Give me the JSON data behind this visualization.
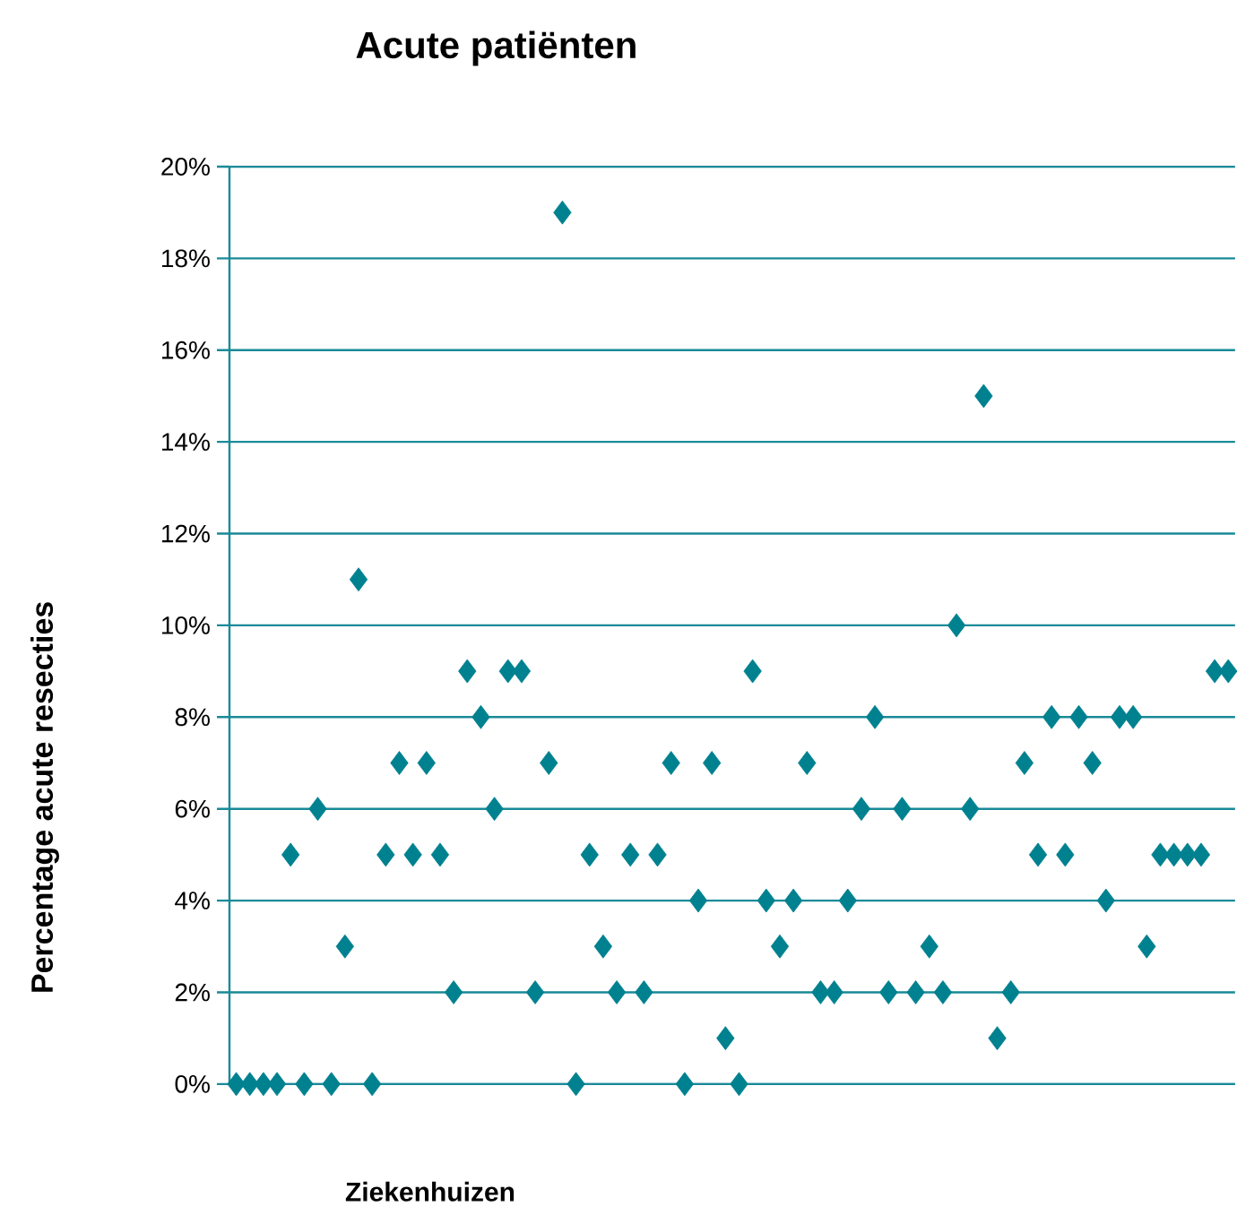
{
  "chart_data": {
    "type": "scatter",
    "title": "Acute patiënten",
    "xlabel": "Ziekenhuizen",
    "ylabel": "Percentage acute resecties",
    "categories": [
      null,
      null,
      null,
      null,
      null,
      null,
      null,
      null,
      null,
      null,
      null,
      null,
      null,
      null,
      null,
      null,
      null,
      null,
      null,
      null,
      null,
      null,
      null,
      null,
      null,
      null,
      null,
      null,
      null,
      null,
      null,
      null,
      null,
      null,
      null,
      null,
      null,
      null,
      null,
      null,
      null,
      null,
      null,
      null,
      null,
      null,
      null,
      null,
      null,
      null,
      null,
      null,
      null,
      null,
      null,
      null,
      null,
      null,
      null,
      null,
      null,
      null,
      null,
      null,
      null,
      null,
      null,
      null,
      null,
      null,
      null,
      null,
      null,
      null
    ],
    "values": [
      0,
      0,
      0,
      0,
      5,
      0,
      6,
      0,
      3,
      11,
      0,
      5,
      7,
      5,
      7,
      5,
      2,
      9,
      8,
      6,
      9,
      9,
      2,
      7,
      19,
      0,
      5,
      3,
      2,
      5,
      2,
      5,
      7,
      0,
      4,
      7,
      1,
      0,
      9,
      4,
      3,
      4,
      7,
      2,
      2,
      4,
      6,
      8,
      2,
      6,
      2,
      3,
      2,
      10,
      6,
      15,
      1,
      2,
      7,
      5,
      8,
      5,
      8,
      7,
      4,
      8,
      8,
      3,
      5,
      5,
      5,
      5,
      9,
      9
    ],
    "color": "#00818f",
    "marker": "diamond",
    "grid": "y",
    "tick_labels": "y",
    "ylim": [
      0,
      20
    ],
    "yticks": [
      {
        "value": 0,
        "label": "0%"
      },
      {
        "value": 2,
        "label": "2%"
      },
      {
        "value": 4,
        "label": "4%"
      },
      {
        "value": 6,
        "label": "6%"
      },
      {
        "value": 8,
        "label": "8%"
      },
      {
        "value": 10,
        "label": "10%"
      },
      {
        "value": 12,
        "label": "12%"
      },
      {
        "value": 14,
        "label": "14%"
      },
      {
        "value": 16,
        "label": "16%"
      },
      {
        "value": 18,
        "label": "18%"
      },
      {
        "value": 20,
        "label": "20%"
      }
    ]
  }
}
